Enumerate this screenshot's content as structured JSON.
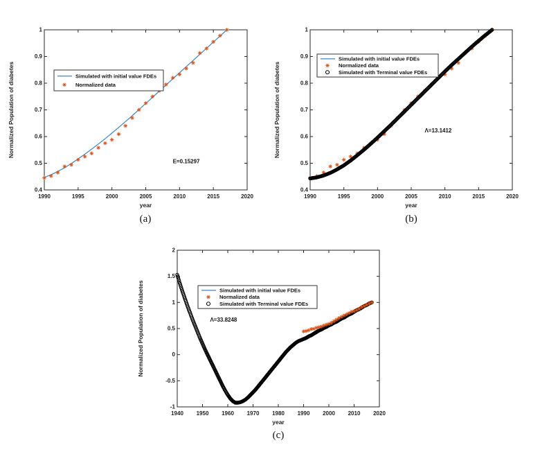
{
  "captions": {
    "a": "(a)",
    "b": "(b)",
    "c": "(c)"
  },
  "colors": {
    "sim_initial_line": "#3a86c8",
    "normalized_marker": "#d95319",
    "terminal_marker": "#000000",
    "axis": "#262626"
  },
  "legend_labels": {
    "initial": "Simulated with initial value FDEs",
    "data": "Normalized data",
    "terminal": "Simulated with Terminal value FDEs"
  },
  "chart_data": [
    {
      "id": "a",
      "type": "line",
      "title": "",
      "xlabel": "year",
      "ylabel": "Normalized Population of diabetes",
      "xlim": [
        1990,
        2020
      ],
      "ylim": [
        0.4,
        1
      ],
      "xticks": [
        "1990",
        "1995",
        "2000",
        "2005",
        "2010",
        "2015",
        "2020"
      ],
      "yticks": [
        "0.4",
        "0.5",
        "0.6",
        "0.7",
        "0.8",
        "0.9",
        "1"
      ],
      "grid": false,
      "legend_position": "upper-left-inside",
      "annotation": {
        "text": "E=0.15297",
        "x": 2009,
        "y": 0.5
      },
      "legend": [
        {
          "marker": "line",
          "label": "Simulated with initial value FDEs",
          "color": "#3a86c8"
        },
        {
          "marker": "asterisk",
          "label": "Normalized data",
          "color": "#d95319"
        }
      ],
      "series": [
        {
          "name": "Simulated with initial value FDEs",
          "style": "line",
          "color": "#3a86c8",
          "x": [
            1990,
            1991,
            1992,
            1993,
            1994,
            1995,
            1996,
            1997,
            1998,
            1999,
            2000,
            2001,
            2002,
            2003,
            2004,
            2005,
            2006,
            2007,
            2008,
            2009,
            2010,
            2011,
            2012,
            2013,
            2014,
            2015,
            2016,
            2017
          ],
          "y": [
            0.447,
            0.457,
            0.469,
            0.483,
            0.499,
            0.516,
            0.534,
            0.553,
            0.572,
            0.592,
            0.613,
            0.634,
            0.656,
            0.678,
            0.701,
            0.724,
            0.747,
            0.77,
            0.793,
            0.816,
            0.839,
            0.862,
            0.885,
            0.908,
            0.931,
            0.954,
            0.977,
            1.0
          ]
        },
        {
          "name": "Normalized data",
          "style": "asterisk",
          "color": "#d95319",
          "x": [
            1990,
            1991,
            1992,
            1993,
            1994,
            1995,
            1996,
            1997,
            1998,
            1999,
            2000,
            2001,
            2002,
            2003,
            2004,
            2005,
            2006,
            2007,
            2008,
            2009,
            2010,
            2011,
            2012,
            2013,
            2014,
            2015,
            2016,
            2017
          ],
          "y": [
            0.445,
            0.452,
            0.465,
            0.488,
            0.494,
            0.513,
            0.525,
            0.537,
            0.558,
            0.575,
            0.588,
            0.609,
            0.64,
            0.67,
            0.7,
            0.725,
            0.75,
            0.772,
            0.795,
            0.82,
            0.833,
            0.855,
            0.876,
            0.913,
            0.93,
            0.955,
            0.978,
            1.0
          ]
        }
      ]
    },
    {
      "id": "b",
      "type": "line",
      "title": "",
      "xlabel": "year",
      "ylabel": "Normalized Population of diabetes",
      "xlim": [
        1990,
        2020
      ],
      "ylim": [
        0.4,
        1
      ],
      "xticks": [
        "1990",
        "1995",
        "2000",
        "2005",
        "2010",
        "2015",
        "2020"
      ],
      "yticks": [
        "0.4",
        "0.5",
        "0.6",
        "0.7",
        "0.8",
        "0.9",
        "1"
      ],
      "grid": false,
      "legend_position": "upper-left-inside",
      "annotation": {
        "text": "Λ=13.1412",
        "x": 2007,
        "y": 0.616
      },
      "legend": [
        {
          "marker": "line",
          "label": "Simulated with initial value FDEs",
          "color": "#3a86c8"
        },
        {
          "marker": "asterisk",
          "label": "Normalized data",
          "color": "#d95319"
        },
        {
          "marker": "circle",
          "label": "Simulated with Terminal value FDEs",
          "color": "#000000"
        }
      ],
      "series": [
        {
          "name": "Simulated with initial value FDEs",
          "style": "line",
          "color": "#3a86c8",
          "x": [
            1990,
            1991,
            1992,
            1993,
            1994,
            1995,
            1996,
            1997,
            1998,
            1999,
            2000,
            2001,
            2002,
            2003,
            2004,
            2005,
            2006,
            2007,
            2008,
            2009,
            2010,
            2011,
            2012,
            2013,
            2014,
            2015,
            2016,
            2017
          ],
          "y": [
            0.443,
            0.447,
            0.454,
            0.464,
            0.477,
            0.492,
            0.51,
            0.53,
            0.551,
            0.573,
            0.596,
            0.62,
            0.644,
            0.669,
            0.694,
            0.719,
            0.744,
            0.769,
            0.794,
            0.819,
            0.844,
            0.868,
            0.891,
            0.914,
            0.937,
            0.959,
            0.98,
            1.0
          ]
        },
        {
          "name": "Normalized data",
          "style": "asterisk",
          "color": "#d95319",
          "x": [
            1990,
            1991,
            1992,
            1993,
            1994,
            1995,
            1996,
            1997,
            1998,
            1999,
            2000,
            2001,
            2002,
            2003,
            2004,
            2005,
            2006,
            2007,
            2008,
            2009,
            2010,
            2011,
            2012,
            2013,
            2014,
            2015,
            2016,
            2017
          ],
          "y": [
            0.445,
            0.452,
            0.465,
            0.488,
            0.494,
            0.513,
            0.525,
            0.537,
            0.558,
            0.575,
            0.588,
            0.609,
            0.64,
            0.67,
            0.7,
            0.725,
            0.75,
            0.772,
            0.795,
            0.82,
            0.833,
            0.855,
            0.876,
            0.913,
            0.93,
            0.955,
            0.978,
            1.0
          ]
        },
        {
          "name": "Simulated with Terminal value FDEs",
          "style": "circle-dense",
          "step": 0.1,
          "color": "#000000",
          "x": [
            1990,
            1991,
            1992,
            1993,
            1994,
            1995,
            1996,
            1997,
            1998,
            1999,
            2000,
            2001,
            2002,
            2003,
            2004,
            2005,
            2006,
            2007,
            2008,
            2009,
            2010,
            2011,
            2012,
            2013,
            2014,
            2015,
            2016,
            2017
          ],
          "y": [
            0.443,
            0.447,
            0.454,
            0.464,
            0.477,
            0.492,
            0.51,
            0.53,
            0.551,
            0.573,
            0.596,
            0.62,
            0.644,
            0.669,
            0.694,
            0.719,
            0.744,
            0.769,
            0.794,
            0.819,
            0.844,
            0.868,
            0.891,
            0.914,
            0.937,
            0.959,
            0.98,
            1.0
          ]
        }
      ]
    },
    {
      "id": "c",
      "type": "line",
      "title": "",
      "xlabel": "year",
      "ylabel": "Normalized Population of diabetes",
      "xlim": [
        1940,
        2020
      ],
      "ylim": [
        -1,
        2
      ],
      "xticks": [
        "1940",
        "1950",
        "1960",
        "1970",
        "1980",
        "1990",
        "2000",
        "2010",
        "2020"
      ],
      "yticks": [
        "-1",
        "-0.5",
        "0",
        "0.5",
        "1",
        "1.5",
        "2"
      ],
      "grid": false,
      "legend_position": "upper-center-inside",
      "annotation": {
        "text": "Λ=33.8248",
        "x": 1953,
        "y": 0.63
      },
      "legend": [
        {
          "marker": "line",
          "label": "Simulated with initial value FDEs",
          "color": "#3a86c8"
        },
        {
          "marker": "asterisk",
          "label": "Normalized data",
          "color": "#d95319"
        },
        {
          "marker": "circle",
          "label": "Simulated with Terminal value FDEs",
          "color": "#000000"
        }
      ],
      "series": [
        {
          "name": "Simulated with Terminal value FDEs",
          "style": "circle-dense",
          "step": 0.2,
          "color": "#000000",
          "x": [
            1940,
            1941,
            1942,
            1943,
            1944,
            1945,
            1946,
            1947,
            1948,
            1949,
            1950,
            1951,
            1952,
            1953,
            1954,
            1955,
            1956,
            1957,
            1958,
            1959,
            1960,
            1961,
            1962,
            1963,
            1964,
            1965,
            1966,
            1967,
            1968,
            1969,
            1970,
            1971,
            1972,
            1973,
            1974,
            1975,
            1976,
            1977,
            1978,
            1979,
            1980,
            1981,
            1982,
            1983,
            1984,
            1985,
            1986,
            1987,
            1988,
            1989,
            1990,
            1991,
            1992,
            1993,
            1994,
            1995,
            1996,
            1997,
            1998,
            1999,
            2000,
            2001,
            2002,
            2003,
            2004,
            2005,
            2006,
            2007,
            2008,
            2009,
            2010,
            2011,
            2012,
            2013,
            2014,
            2015,
            2016,
            2017
          ],
          "y": [
            1.53,
            1.37,
            1.22,
            1.08,
            0.94,
            0.81,
            0.68,
            0.56,
            0.44,
            0.32,
            0.21,
            0.1,
            0.0,
            -0.1,
            -0.2,
            -0.3,
            -0.4,
            -0.5,
            -0.6,
            -0.69,
            -0.77,
            -0.84,
            -0.89,
            -0.92,
            -0.92,
            -0.91,
            -0.89,
            -0.86,
            -0.82,
            -0.77,
            -0.72,
            -0.67,
            -0.61,
            -0.55,
            -0.49,
            -0.43,
            -0.37,
            -0.31,
            -0.25,
            -0.19,
            -0.13,
            -0.07,
            -0.01,
            0.05,
            0.1,
            0.15,
            0.19,
            0.23,
            0.26,
            0.28,
            0.3,
            0.32,
            0.35,
            0.37,
            0.4,
            0.43,
            0.46,
            0.48,
            0.51,
            0.53,
            0.56,
            0.58,
            0.61,
            0.63,
            0.66,
            0.69,
            0.71,
            0.74,
            0.77,
            0.79,
            0.82,
            0.85,
            0.87,
            0.9,
            0.93,
            0.95,
            0.98,
            1.0
          ]
        },
        {
          "name": "Normalized data",
          "style": "asterisk",
          "color": "#d95319",
          "x": [
            1990,
            1991,
            1992,
            1993,
            1994,
            1995,
            1996,
            1997,
            1998,
            1999,
            2000,
            2001,
            2002,
            2003,
            2004,
            2005,
            2006,
            2007,
            2008,
            2009,
            2010,
            2011,
            2012,
            2013,
            2014,
            2015,
            2016,
            2017
          ],
          "y": [
            0.445,
            0.452,
            0.465,
            0.488,
            0.494,
            0.513,
            0.525,
            0.537,
            0.558,
            0.575,
            0.588,
            0.609,
            0.64,
            0.67,
            0.7,
            0.725,
            0.75,
            0.772,
            0.795,
            0.82,
            0.833,
            0.855,
            0.876,
            0.913,
            0.93,
            0.955,
            0.978,
            1.0
          ]
        }
      ]
    }
  ]
}
